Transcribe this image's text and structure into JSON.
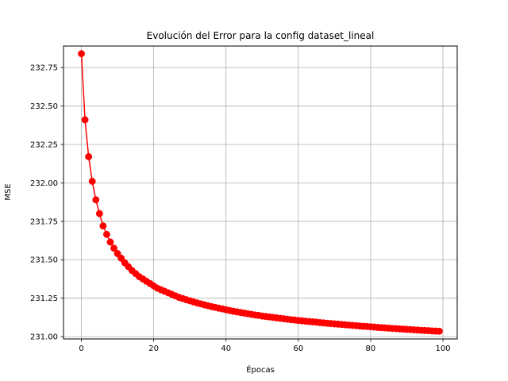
{
  "chart_data": {
    "type": "line",
    "title": "Evolución del Error para la config dataset_lineal",
    "xlabel": "Épocas",
    "ylabel": "MSE",
    "xlim": [
      -4.95,
      103.95
    ],
    "ylim": [
      230.985,
      232.89
    ],
    "xticks": [
      0,
      20,
      40,
      60,
      80,
      100
    ],
    "yticks": [
      231.0,
      231.25,
      231.5,
      231.75,
      232.0,
      232.25,
      232.5,
      232.75
    ],
    "ytick_labels": [
      "231.00",
      "231.25",
      "231.50",
      "231.75",
      "232.00",
      "232.25",
      "232.50",
      "232.75"
    ],
    "grid": true,
    "series": [
      {
        "color": "#ff0000",
        "marker": "circle",
        "x": [
          0,
          1,
          2,
          3,
          4,
          5,
          6,
          7,
          8,
          9,
          10,
          11,
          12,
          13,
          14,
          15,
          16,
          17,
          18,
          19,
          20,
          21,
          22,
          23,
          24,
          25,
          26,
          27,
          28,
          29,
          30,
          31,
          32,
          33,
          34,
          35,
          36,
          37,
          38,
          39,
          40,
          41,
          42,
          43,
          44,
          45,
          46,
          47,
          48,
          49,
          50,
          51,
          52,
          53,
          54,
          55,
          56,
          57,
          58,
          59,
          60,
          61,
          62,
          63,
          64,
          65,
          66,
          67,
          68,
          69,
          70,
          71,
          72,
          73,
          74,
          75,
          76,
          77,
          78,
          79,
          80,
          81,
          82,
          83,
          84,
          85,
          86,
          87,
          88,
          89,
          90,
          91,
          92,
          93,
          94,
          95,
          96,
          97,
          98,
          99
        ],
        "values": [
          232.84,
          232.41,
          232.17,
          232.01,
          231.89,
          231.8,
          231.72,
          231.665,
          231.615,
          231.575,
          231.54,
          231.51,
          231.48,
          231.455,
          231.43,
          231.41,
          231.39,
          231.375,
          231.36,
          231.345,
          231.33,
          231.315,
          231.305,
          231.295,
          231.285,
          231.275,
          231.265,
          231.255,
          231.248,
          231.24,
          231.233,
          231.226,
          231.219,
          231.213,
          231.207,
          231.201,
          231.195,
          231.19,
          231.185,
          231.18,
          231.175,
          231.17,
          231.165,
          231.161,
          231.157,
          231.153,
          231.149,
          231.145,
          231.141,
          231.138,
          231.134,
          231.131,
          231.128,
          231.125,
          231.122,
          231.119,
          231.116,
          231.113,
          231.11,
          231.108,
          231.105,
          231.103,
          231.1,
          231.098,
          231.096,
          231.094,
          231.091,
          231.089,
          231.087,
          231.085,
          231.083,
          231.081,
          231.079,
          231.077,
          231.075,
          231.073,
          231.071,
          231.069,
          231.067,
          231.066,
          231.064,
          231.062,
          231.06,
          231.058,
          231.057,
          231.055,
          231.053,
          231.052,
          231.05,
          231.049,
          231.047,
          231.046,
          231.044,
          231.043,
          231.041,
          231.04,
          231.039,
          231.037,
          231.036,
          231.035
        ]
      }
    ]
  }
}
